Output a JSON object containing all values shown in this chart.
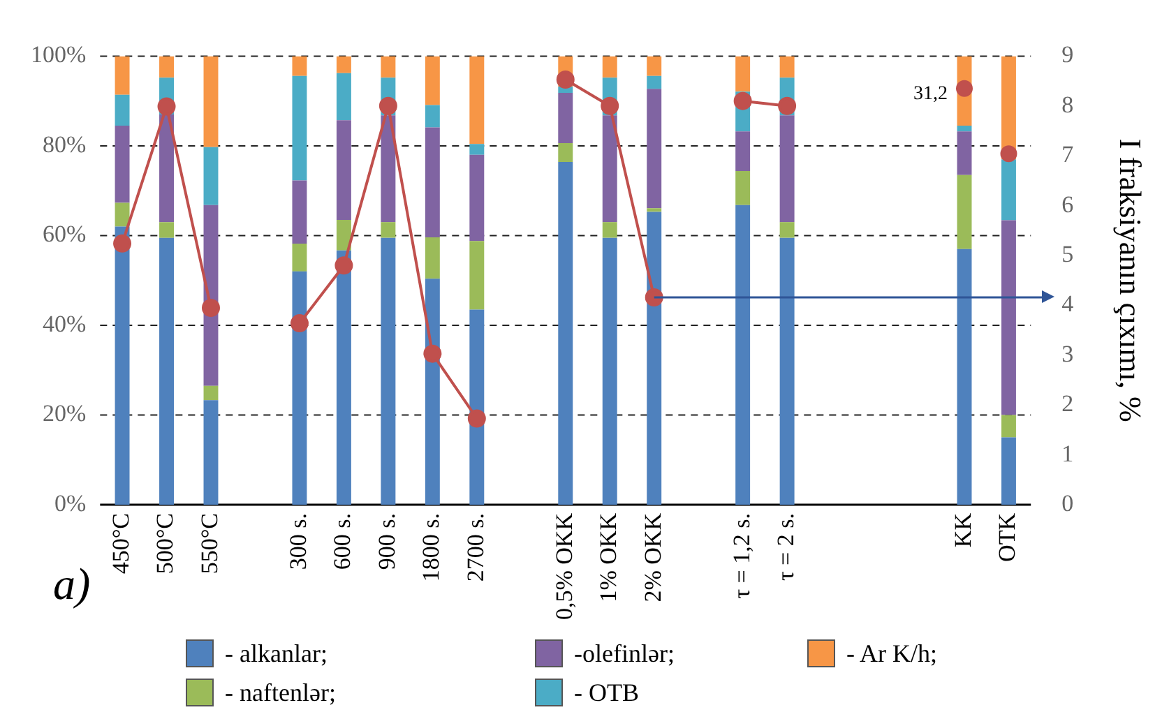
{
  "chart_data": {
    "type": "bar",
    "stacked": true,
    "categories": [
      "450°C",
      "500°C",
      "550°C",
      null,
      "300 s.",
      "600 s.",
      "900 s.",
      "1800 s.",
      "2700 s.",
      null,
      "0,5% OKK",
      "1% OKK",
      "2% OKK",
      null,
      "τ = 1,2 s.",
      "τ = 2 s.",
      null,
      null,
      null,
      "KK",
      "OTK"
    ],
    "series": [
      {
        "name": "- alkanlar;",
        "color": "#4f81bd",
        "values": [
          62,
          59.5,
          23.3,
          null,
          52,
          56.7,
          59.5,
          50.4,
          43.5,
          null,
          76.4,
          59.5,
          65.3,
          null,
          66.8,
          59.5,
          null,
          null,
          null,
          57,
          15
        ]
      },
      {
        "name": "- naftenlər;",
        "color": "#9bbb59",
        "values": [
          5.3,
          3.5,
          3.2,
          null,
          6.2,
          6.8,
          3.5,
          9.2,
          15.3,
          null,
          4.2,
          3.5,
          0.8,
          null,
          7.6,
          3.5,
          null,
          null,
          null,
          16.5,
          5
        ]
      },
      {
        "name": "-olefinlər;",
        "color": "#8064a2",
        "values": [
          17.2,
          24,
          40.3,
          null,
          14.1,
          22.2,
          23.8,
          24.5,
          19.2,
          null,
          11.2,
          23.8,
          26.6,
          null,
          8.8,
          23.8,
          null,
          null,
          null,
          9.7,
          43.4
        ]
      },
      {
        "name": "- OTB",
        "color": "#4bacc6",
        "values": [
          6.9,
          8.2,
          12.9,
          null,
          23.3,
          10.5,
          8.4,
          5,
          2.4,
          null,
          1.4,
          8.4,
          2.9,
          null,
          8.9,
          8.4,
          null,
          null,
          null,
          1.3,
          13.6
        ]
      },
      {
        "name": "- Ar K/h;",
        "color": "#f79646",
        "values": [
          8.6,
          4.8,
          20.3,
          null,
          4.4,
          3.8,
          4.8,
          10.9,
          19.6,
          null,
          6.8,
          4.8,
          4.4,
          null,
          7.9,
          4.8,
          null,
          null,
          null,
          15.5,
          23
        ]
      },
      {
        "type": "line",
        "axis": "y2",
        "color": "#c0504d",
        "marker": "circle",
        "values": [
          5.24,
          7.99,
          3.95,
          null,
          3.64,
          4.8,
          8.0,
          3.03,
          1.73,
          null,
          8.53,
          8.0,
          4.16,
          null,
          8.1,
          8.0,
          null,
          null,
          null,
          null,
          null
        ]
      },
      {
        "type": "scatter",
        "axis": "y2",
        "color": "#c0504d",
        "marker": "circle",
        "values": [
          null,
          null,
          null,
          null,
          null,
          null,
          null,
          null,
          null,
          null,
          null,
          null,
          null,
          null,
          null,
          null,
          null,
          null,
          null,
          8.35,
          7.04
        ]
      }
    ],
    "ylim": [
      0,
      100
    ],
    "yticks": [
      {
        "value": 0,
        "label": "0%"
      },
      {
        "value": 20,
        "label": "20%"
      },
      {
        "value": 40,
        "label": "40%"
      },
      {
        "value": 60,
        "label": "60%"
      },
      {
        "value": 80,
        "label": "80%"
      },
      {
        "value": 100,
        "label": "100%"
      }
    ],
    "y2lim": [
      0,
      9
    ],
    "y2ticks": [
      0,
      1,
      2,
      3,
      4,
      5,
      6,
      7,
      8,
      9
    ],
    "y2label": "I fraksiyanın çıxımı, %",
    "grid": "y",
    "legend": "bottom",
    "ref_lines": [
      {
        "axis": "y2",
        "value": 4.16,
        "color": "#2f5597"
      }
    ],
    "annotations": [
      "a)",
      "31,2"
    ]
  }
}
